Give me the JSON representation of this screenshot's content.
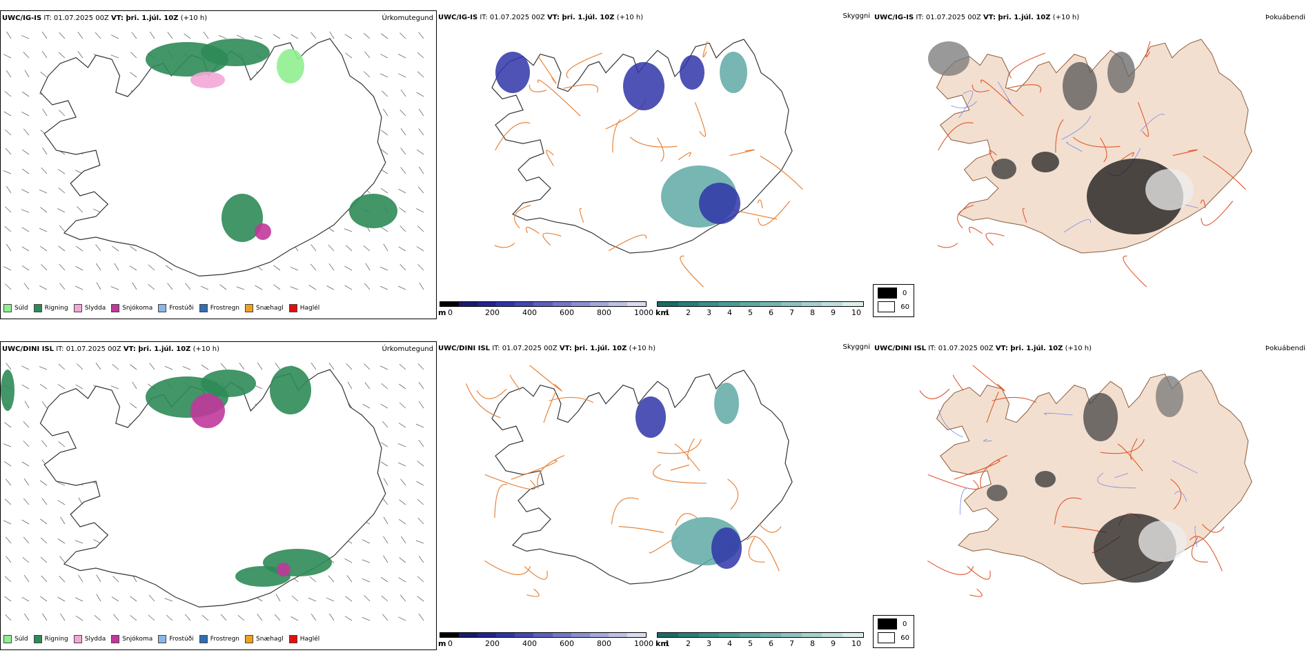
{
  "panels": {
    "precip_top": {
      "model_bold": "UWC/IG-IS",
      "it_text": " IT: 01.07.2025 00Z ",
      "vt_bold": "VT: þri. 1.júl. 10Z",
      "lead": " (+10 h)",
      "param": "Úrkomutegund"
    },
    "vis_top": {
      "model_bold": "UWC/IG-IS",
      "it_text": " IT: 01.07.2025 00Z ",
      "vt_bold": "VT: þri. 1.júl. 10Z",
      "lead": " (+10 h)",
      "param": "Skyggni"
    },
    "fog_top": {
      "model_bold": "UWC/IG-IS",
      "it_text": " IT: 01.07.2025 00Z ",
      "vt_bold": "VT: þri. 1.júl. 10Z",
      "lead": " (+10 h)",
      "param": "Þokuábendi"
    },
    "precip_bottom": {
      "model_bold": "UWC/DINI ISL",
      "it_text": " IT: 01.07.2025 00Z ",
      "vt_bold": "VT: þri. 1.júl. 10Z",
      "lead": " (+10 h)",
      "param": "Úrkomutegund"
    },
    "vis_bottom": {
      "model_bold": "UWC/DINI ISL",
      "it_text": " IT: 01.07.2025 00Z ",
      "vt_bold": "VT: þri. 1.júl. 10Z",
      "lead": " (+10 h)",
      "param": "Skyggni"
    },
    "fog_bottom": {
      "model_bold": "UWC/DINI ISL",
      "it_text": " IT: 01.07.2025 00Z ",
      "vt_bold": "VT: þri. 1.júl. 10Z",
      "lead": " (+10 h)",
      "param": "Þokuábendi"
    }
  },
  "precip_legend": [
    {
      "label": "Súld",
      "color": "#90ee90"
    },
    {
      "label": "Rigning",
      "color": "#2e8b57"
    },
    {
      "label": "Slydda",
      "color": "#f4a6d7"
    },
    {
      "label": "Snjókoma",
      "color": "#c0399b"
    },
    {
      "label": "Frostúði",
      "color": "#87b7e8"
    },
    {
      "label": "Frostregn",
      "color": "#2f6fb5"
    },
    {
      "label": "Snæhagl",
      "color": "#f0a020"
    },
    {
      "label": "Haglél",
      "color": "#e01010"
    }
  ],
  "height_scale": {
    "unit": "m",
    "ticks": [
      "0",
      "200",
      "400",
      "600",
      "800",
      "1000"
    ],
    "colors": [
      "#000000",
      "#1a1a6e",
      "#232391",
      "#2f35a8",
      "#4448b2",
      "#5c60bd",
      "#7478c7",
      "#8c8fd0",
      "#a5a8da",
      "#bfc1e4",
      "#d9dbee"
    ]
  },
  "visibility_scale": {
    "unit": "km",
    "ticks": [
      "1",
      "2",
      "3",
      "4",
      "5",
      "6",
      "7",
      "8",
      "9",
      "10"
    ],
    "colors": [
      "#1b6b66",
      "#2a7e78",
      "#3a8f89",
      "#4c9d97",
      "#5fa9a4",
      "#76b6b1",
      "#8dc3bf",
      "#a6d1cd",
      "#c0dfdc",
      "#dbeeec"
    ]
  },
  "fog_legend": {
    "min_label": "0",
    "max_label": "60",
    "min_color": "#000000",
    "max_color": "#ffffff"
  },
  "map_colors": {
    "coast": "#333333",
    "roads_vis": "#e8843a",
    "roads_fog": "#e0552c",
    "land_fog": "#f3dfcf",
    "rivers": "#7788ee",
    "rain": "#2e8b57",
    "drizzle": "#90ee90",
    "sleet": "#f4a6d7",
    "snow": "#c0399b",
    "vis_low": "#2f35a8",
    "vis_mid": "#5fa9a4"
  }
}
